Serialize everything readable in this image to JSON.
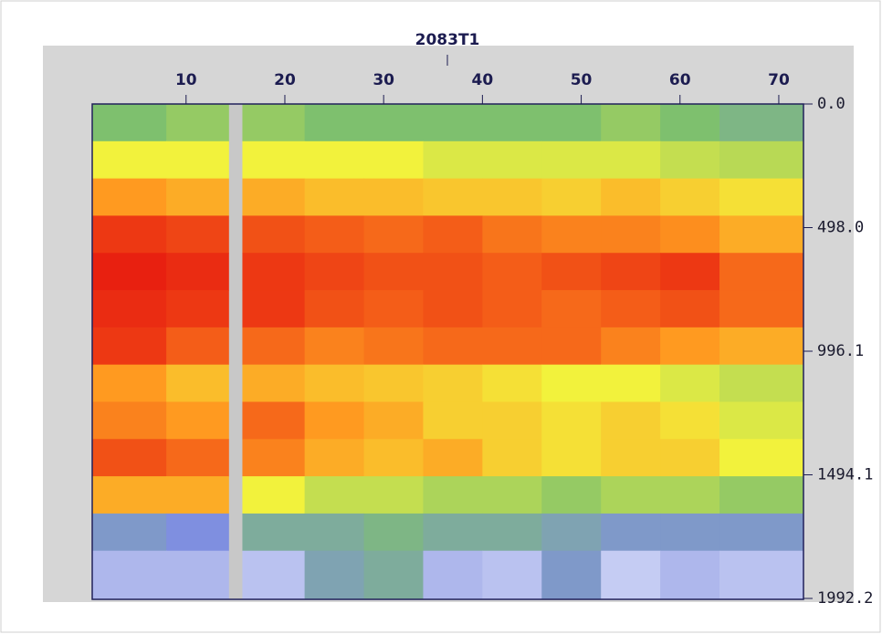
{
  "chart_data": {
    "type": "heatmap",
    "title": "2083T1",
    "xlim": [
      0.5,
      72.5
    ],
    "xticks": [
      10,
      20,
      30,
      40,
      50,
      60,
      70
    ],
    "ylim": [
      0,
      1992.2
    ],
    "yticks": [
      {
        "value": 0,
        "label": "0.0"
      },
      {
        "value": 498,
        "label": "498.0"
      },
      996.1,
      1494.1,
      1992.2
    ],
    "xbins": [
      0.5,
      8,
      14.3,
      15.7,
      22,
      28,
      34,
      40,
      46,
      52,
      58,
      64,
      72.5
    ],
    "ybins": [
      0,
      150,
      300,
      450,
      600,
      750,
      900,
      1050,
      1200,
      1350,
      1500,
      1650,
      1800,
      1992.2
    ],
    "zlim": [
      0,
      5
    ],
    "colormap": [
      "#f4f4ff",
      "#7f8fe0",
      "#7ec06e",
      "#f2f23c",
      "#ff9a20",
      "#e82010"
    ],
    "z": [
      [
        2,
        2.2,
        null,
        2.2,
        2,
        2,
        2,
        2,
        2,
        2.2,
        2,
        1.8
      ],
      [
        3,
        3,
        null,
        3,
        3,
        3,
        2.8,
        2.8,
        2.8,
        2.8,
        2.6,
        2.5
      ],
      [
        4,
        3.8,
        null,
        3.8,
        3.6,
        3.6,
        3.5,
        3.5,
        3.4,
        3.6,
        3.4,
        3.2
      ],
      [
        4.8,
        4.7,
        null,
        4.6,
        4.5,
        4.4,
        4.5,
        4.3,
        4.2,
        4.2,
        4.1,
        3.8
      ],
      [
        5,
        4.9,
        null,
        4.8,
        4.7,
        4.6,
        4.6,
        4.5,
        4.6,
        4.7,
        4.8,
        4.4
      ],
      [
        4.9,
        4.8,
        null,
        4.8,
        4.6,
        4.5,
        4.6,
        4.5,
        4.4,
        4.5,
        4.6,
        4.4
      ],
      [
        4.8,
        4.5,
        null,
        4.4,
        4.2,
        4.3,
        4.4,
        4.4,
        4.4,
        4.2,
        4,
        3.8
      ],
      [
        4,
        3.6,
        null,
        3.8,
        3.6,
        3.5,
        3.4,
        3.2,
        3,
        3,
        2.8,
        2.6
      ],
      [
        4.2,
        4,
        null,
        4.4,
        4,
        3.8,
        3.4,
        3.4,
        3.2,
        3.4,
        3.2,
        2.8
      ],
      [
        4.6,
        4.4,
        null,
        4.2,
        3.8,
        3.6,
        3.8,
        3.4,
        3.2,
        3.4,
        3.4,
        3
      ],
      [
        3.8,
        3.8,
        null,
        3,
        2.6,
        2.6,
        2.4,
        2.4,
        2.2,
        2.4,
        2.4,
        2.2
      ],
      [
        1.2,
        1,
        null,
        1.6,
        1.6,
        1.8,
        1.6,
        1.6,
        1.4,
        1.2,
        1.2,
        1.2
      ],
      [
        0.6,
        0.6,
        null,
        0.5,
        1.4,
        1.6,
        0.6,
        0.5,
        1.2,
        0.4,
        0.6,
        0.5
      ]
    ]
  }
}
